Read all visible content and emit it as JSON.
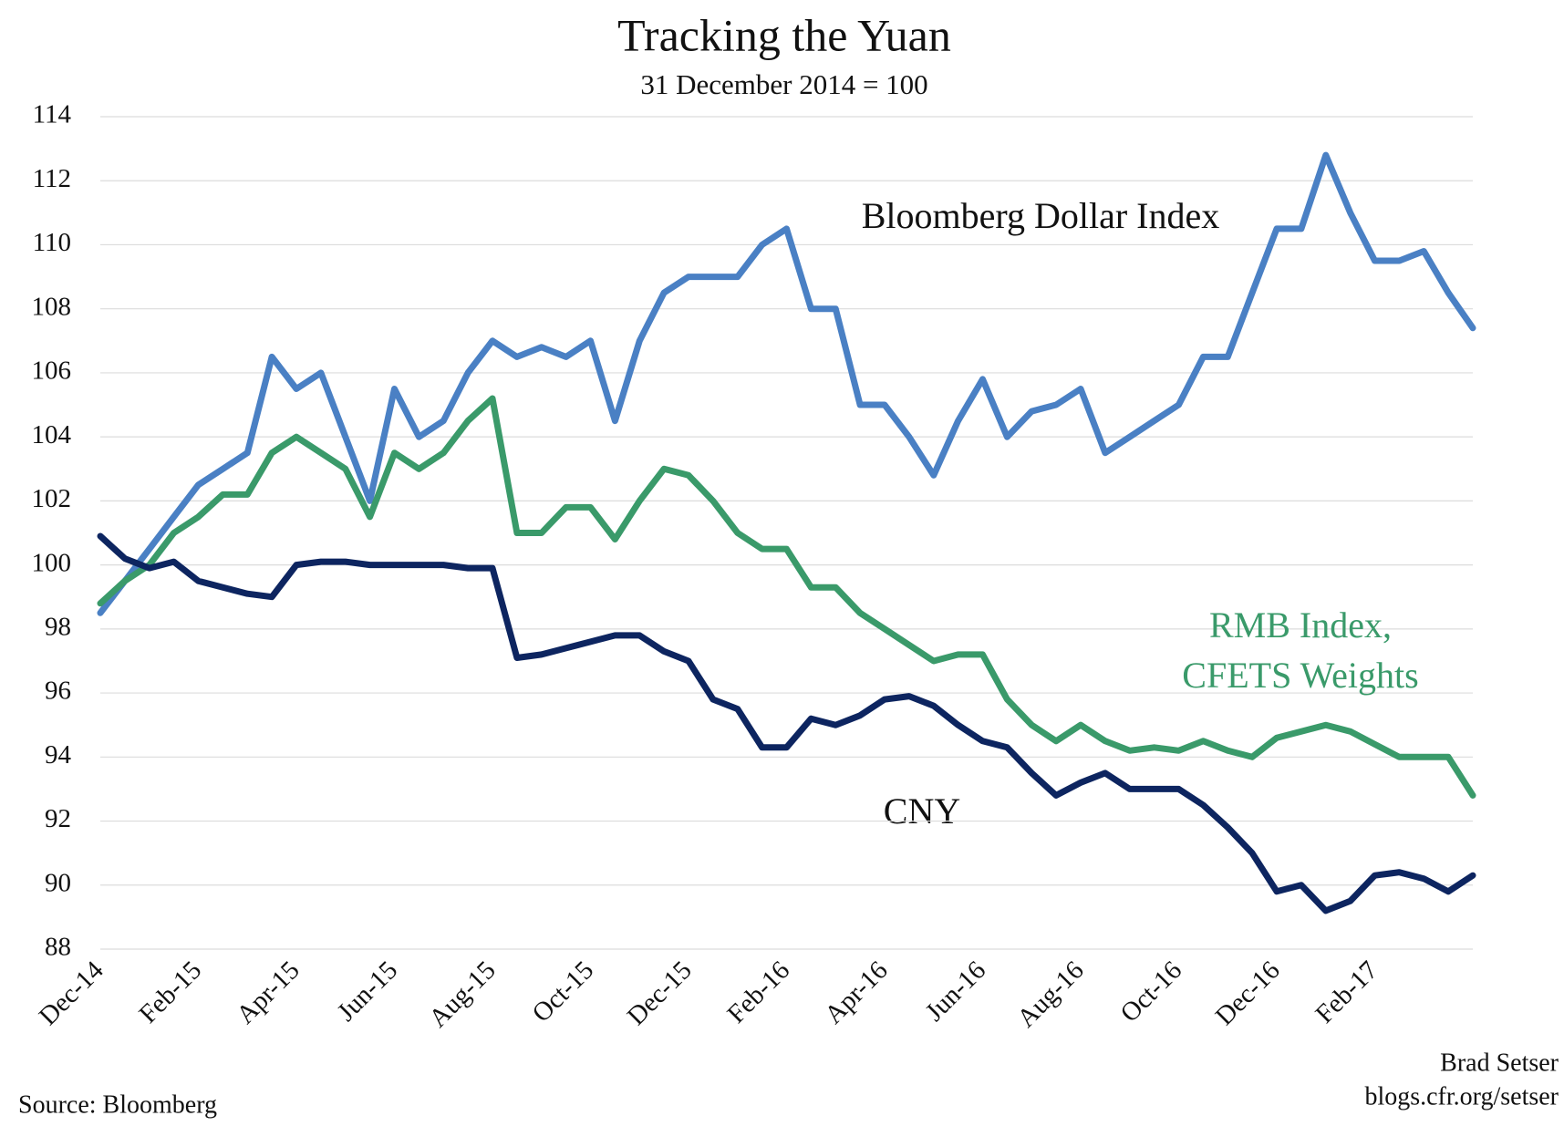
{
  "chart_data": {
    "type": "line",
    "title": "Tracking the Yuan",
    "subtitle": "31 December 2014 = 100",
    "source": "Source: Bloomberg",
    "credit_lines": [
      "Brad Setser",
      "blogs.cfr.org/setser"
    ],
    "categories": [
      "Dec-14",
      null,
      null,
      null,
      "Feb-15",
      null,
      null,
      null,
      "Apr-15",
      null,
      null,
      null,
      "Jun-15",
      null,
      null,
      null,
      "Aug-15",
      null,
      null,
      null,
      "Oct-15",
      null,
      null,
      null,
      "Dec-15",
      null,
      null,
      null,
      "Feb-16",
      null,
      null,
      null,
      "Apr-16",
      null,
      null,
      null,
      "Jun-16",
      null,
      null,
      null,
      "Aug-16",
      null,
      null,
      null,
      "Oct-16",
      null,
      null,
      null,
      "Dec-16",
      null,
      null,
      null,
      "Feb-17",
      null,
      null,
      null,
      null
    ],
    "series": [
      {
        "name": "Bloomberg Dollar Index",
        "color": "#4a80c4",
        "values": [
          98.5,
          99.5,
          100.5,
          101.5,
          102.5,
          103,
          103.5,
          106.5,
          105.5,
          106,
          104,
          102,
          105.5,
          104,
          104.5,
          106,
          107,
          106.5,
          106.8,
          106.5,
          107,
          104.5,
          107,
          108.5,
          109,
          109,
          109,
          110,
          110.5,
          108,
          108,
          105,
          105,
          104,
          102.8,
          104.5,
          105.8,
          104,
          104.8,
          105,
          105.5,
          103.5,
          104,
          104.5,
          105,
          106.5,
          106.5,
          108.5,
          110.5,
          110.5,
          112.8,
          111,
          109.5,
          109.5,
          109.8,
          108.5,
          107.4
        ]
      },
      {
        "name": "RMB Index, CFETS Weights",
        "color": "#3a9a6a",
        "values": [
          98.8,
          99.5,
          100,
          101,
          101.5,
          102.2,
          102.2,
          103.5,
          104,
          103.5,
          103,
          101.5,
          103.5,
          103,
          103.5,
          104.5,
          105.2,
          101,
          101,
          101.8,
          101.8,
          100.8,
          102,
          103,
          102.8,
          102,
          101,
          100.5,
          100.5,
          99.3,
          99.3,
          98.5,
          98,
          97.5,
          97,
          97.2,
          97.2,
          95.8,
          95,
          94.5,
          95,
          94.5,
          94.2,
          94.3,
          94.2,
          94.5,
          94.2,
          94,
          94.6,
          94.8,
          95,
          94.8,
          94.4,
          94,
          94,
          94,
          92.8
        ]
      },
      {
        "name": "CNY",
        "color": "#0d2560",
        "values": [
          100.9,
          100.2,
          99.9,
          100.1,
          99.5,
          99.3,
          99.1,
          99,
          100,
          100.1,
          100.1,
          100,
          100,
          100,
          100,
          99.9,
          99.9,
          97.1,
          97.2,
          97.4,
          97.6,
          97.8,
          97.8,
          97.3,
          97,
          95.8,
          95.5,
          94.3,
          94.3,
          95.2,
          95,
          95.3,
          95.8,
          95.9,
          95.6,
          95,
          94.5,
          94.3,
          93.5,
          92.8,
          93.2,
          93.5,
          93,
          93,
          93,
          92.5,
          91.8,
          91,
          89.8,
          90,
          89.2,
          89.5,
          90.3,
          90.4,
          90.2,
          89.8,
          90.3
        ]
      }
    ],
    "ylim": [
      88,
      114
    ],
    "yticks": [
      88,
      90,
      92,
      94,
      96,
      98,
      100,
      102,
      104,
      106,
      108,
      110,
      112,
      114
    ],
    "grid": true
  }
}
